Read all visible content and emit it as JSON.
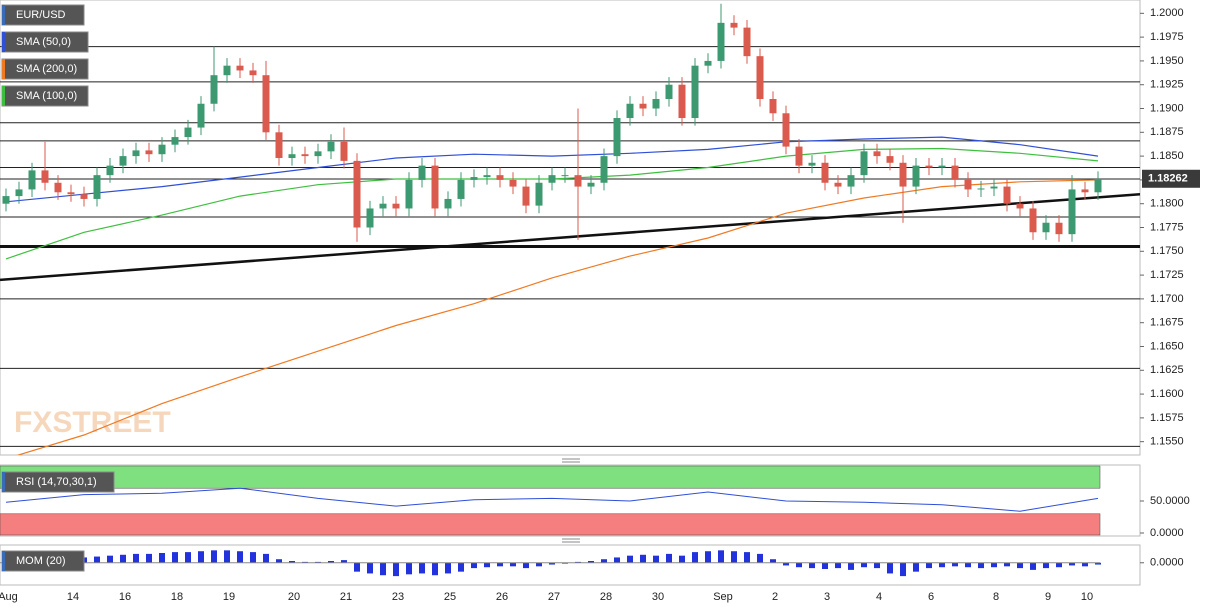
{
  "chart_data": [
    {
      "type": "candlestick",
      "title": "EUR/USD",
      "watermark": "FXSTREET",
      "categories": [
        "Aug",
        null,
        null,
        null,
        null,
        "14",
        null,
        null,
        null,
        "16",
        null,
        null,
        null,
        "18",
        null,
        null,
        null,
        "19",
        null,
        null,
        null,
        null,
        "20",
        null,
        null,
        null,
        "21",
        null,
        null,
        null,
        "23",
        null,
        null,
        null,
        "25",
        null,
        null,
        null,
        "26",
        null,
        null,
        null,
        "27",
        null,
        null,
        null,
        "28",
        null,
        null,
        null,
        "30",
        null,
        null,
        null,
        null,
        "Sep",
        null,
        null,
        null,
        "2",
        null,
        null,
        null,
        "3",
        null,
        null,
        null,
        "4",
        null,
        null,
        null,
        "6",
        null,
        null,
        null,
        null,
        "8",
        null,
        null,
        null,
        "9",
        null,
        null,
        "10",
        null
      ],
      "open": [
        1.18,
        1.1808,
        1.1815,
        1.1835,
        1.1822,
        1.1812,
        1.181,
        1.1805,
        1.183,
        1.184,
        1.185,
        1.1856,
        1.1852,
        1.1862,
        1.187,
        1.188,
        1.1905,
        1.1935,
        1.1945,
        1.194,
        1.1935,
        1.1875,
        1.1848,
        1.1852,
        1.185,
        1.1855,
        1.1865,
        1.1845,
        1.1775,
        1.1795,
        1.18,
        1.1795,
        1.1825,
        1.184,
        1.1795,
        1.1805,
        1.1825,
        1.1828,
        1.183,
        1.1825,
        1.1818,
        1.1798,
        1.1822,
        1.183,
        1.183,
        1.1818,
        1.1822,
        1.185,
        1.189,
        1.1905,
        1.19,
        1.191,
        1.1925,
        1.189,
        1.1945,
        1.195,
        1.199,
        1.1985,
        1.1955,
        1.191,
        1.1895,
        1.186,
        1.184,
        1.1843,
        1.1822,
        1.1818,
        1.183,
        1.1855,
        1.185,
        1.1843,
        1.1818,
        1.184,
        1.1838,
        1.184,
        1.1825,
        1.1815,
        1.1816,
        1.1818,
        1.18,
        1.1795,
        1.177,
        1.178,
        1.1768,
        1.1815,
        1.1812
      ],
      "high": [
        1.1816,
        1.1823,
        1.1843,
        1.1865,
        1.183,
        1.182,
        1.1818,
        1.1838,
        1.1848,
        1.1858,
        1.1864,
        1.1864,
        1.187,
        1.1878,
        1.1888,
        1.1913,
        1.1965,
        1.1953,
        1.1953,
        1.1948,
        1.195,
        1.1883,
        1.186,
        1.186,
        1.1863,
        1.1873,
        1.188,
        1.1853,
        1.1803,
        1.1808,
        1.1808,
        1.1833,
        1.1848,
        1.1848,
        1.1813,
        1.1833,
        1.1836,
        1.1838,
        1.1838,
        1.1833,
        1.1826,
        1.183,
        1.1838,
        1.1838,
        1.19,
        1.183,
        1.1858,
        1.1898,
        1.1913,
        1.1913,
        1.1918,
        1.1933,
        1.1933,
        1.1953,
        1.1958,
        1.201,
        1.1998,
        1.1993,
        1.1963,
        1.1918,
        1.1903,
        1.1868,
        1.1851,
        1.1851,
        1.183,
        1.1838,
        1.1863,
        1.1863,
        1.1858,
        1.1851,
        1.1848,
        1.1848,
        1.1848,
        1.1848,
        1.1833,
        1.1824,
        1.1826,
        1.1826,
        1.1808,
        1.1803,
        1.1788,
        1.1788,
        1.183,
        1.1823,
        1.1834
      ],
      "low": [
        1.1792,
        1.18,
        1.1807,
        1.1814,
        1.1804,
        1.1802,
        1.1797,
        1.1797,
        1.1822,
        1.1832,
        1.1842,
        1.1844,
        1.1844,
        1.1854,
        1.1862,
        1.1872,
        1.1897,
        1.1927,
        1.1932,
        1.1927,
        1.1867,
        1.184,
        1.184,
        1.1842,
        1.1842,
        1.1847,
        1.1837,
        1.176,
        1.1767,
        1.1787,
        1.1787,
        1.1787,
        1.1817,
        1.1787,
        1.1787,
        1.1797,
        1.1817,
        1.182,
        1.1817,
        1.181,
        1.179,
        1.179,
        1.1814,
        1.1822,
        1.1762,
        1.181,
        1.1814,
        1.1842,
        1.1882,
        1.1892,
        1.1892,
        1.1902,
        1.1882,
        1.1882,
        1.1937,
        1.1942,
        1.1977,
        1.1947,
        1.1902,
        1.1887,
        1.1852,
        1.1832,
        1.1832,
        1.1814,
        1.181,
        1.181,
        1.1822,
        1.1842,
        1.1835,
        1.178,
        1.181,
        1.183,
        1.183,
        1.1817,
        1.1807,
        1.1807,
        1.1808,
        1.1792,
        1.1787,
        1.1762,
        1.1762,
        1.176,
        1.176,
        1.1804,
        1.1804
      ],
      "close": [
        1.1808,
        1.1815,
        1.1835,
        1.1822,
        1.1812,
        1.181,
        1.1805,
        1.183,
        1.184,
        1.185,
        1.1856,
        1.1852,
        1.1862,
        1.187,
        1.188,
        1.1905,
        1.1935,
        1.1945,
        1.194,
        1.1935,
        1.1875,
        1.1848,
        1.1852,
        1.185,
        1.1855,
        1.1865,
        1.1845,
        1.1775,
        1.1795,
        1.18,
        1.1795,
        1.1825,
        1.184,
        1.1795,
        1.1805,
        1.1825,
        1.1828,
        1.183,
        1.1825,
        1.1818,
        1.1798,
        1.1822,
        1.183,
        1.183,
        1.1818,
        1.1822,
        1.185,
        1.189,
        1.1905,
        1.19,
        1.191,
        1.1925,
        1.189,
        1.1945,
        1.195,
        1.199,
        1.1985,
        1.1955,
        1.191,
        1.1895,
        1.186,
        1.184,
        1.1843,
        1.1822,
        1.1818,
        1.183,
        1.1855,
        1.185,
        1.1843,
        1.1818,
        1.184,
        1.1838,
        1.184,
        1.1825,
        1.1815,
        1.1816,
        1.1818,
        1.18,
        1.1795,
        1.177,
        1.178,
        1.1768,
        1.1815,
        1.1812,
        1.1826
      ],
      "up_color": "#3d9970",
      "down_color": "#db5a4e",
      "series": [
        {
          "name": "SMA (50,0)",
          "color": "#2f4fd8",
          "x": [
            0,
            6,
            12,
            18,
            24,
            30,
            36,
            42,
            48,
            54,
            60,
            66,
            72,
            78,
            84
          ],
          "values": [
            1.1802,
            1.181,
            1.1818,
            1.1828,
            1.1838,
            1.1848,
            1.1852,
            1.185,
            1.1853,
            1.1857,
            1.1865,
            1.1868,
            1.187,
            1.1862,
            1.185
          ]
        },
        {
          "name": "SMA (200,0)",
          "color": "#f07a22",
          "x": [
            0,
            6,
            12,
            18,
            24,
            30,
            36,
            42,
            48,
            54,
            60,
            66,
            72,
            78,
            84
          ],
          "values": [
            1.1532,
            1.1557,
            1.159,
            1.1618,
            1.1645,
            1.1672,
            1.1695,
            1.1722,
            1.1745,
            1.1764,
            1.179,
            1.1806,
            1.1818,
            1.1823,
            1.1825
          ]
        },
        {
          "name": "SMA (100,0)",
          "color": "#3fbf3f",
          "x": [
            0,
            6,
            12,
            18,
            24,
            30,
            36,
            42,
            48,
            54,
            60,
            66,
            72,
            78,
            84
          ],
          "values": [
            1.1742,
            1.177,
            1.1788,
            1.1808,
            1.182,
            1.1826,
            1.1826,
            1.1826,
            1.183,
            1.1838,
            1.185,
            1.1857,
            1.1858,
            1.1853,
            1.1845
          ]
        }
      ],
      "levels": [
        1.1965,
        1.1928,
        1.1885,
        1.1866,
        1.1838,
        1.1826,
        1.1786,
        1.17,
        1.1627,
        1.1545
      ],
      "support": 1.1755,
      "trendline": [
        1.172,
        1.181
      ],
      "last_price": 1.18262,
      "ylim": [
        1.1536,
        1.2014
      ],
      "yticks": [
        {
          "value": 1.2,
          "label": "1.2000"
        },
        {
          "value": 1.1975,
          "label": "1.1975"
        },
        {
          "value": 1.195,
          "label": "1.1950"
        },
        {
          "value": 1.1925,
          "label": "1.1925"
        },
        {
          "value": 1.19,
          "label": "1.1900"
        },
        {
          "value": 1.1875,
          "label": "1.1875"
        },
        {
          "value": 1.185,
          "label": "1.1850"
        },
        {
          "value": 1.1825,
          "label": "1.1825"
        },
        {
          "value": 1.18,
          "label": "1.1800"
        },
        {
          "value": 1.1775,
          "label": "1.1775"
        },
        {
          "value": 1.175,
          "label": "1.1750"
        },
        {
          "value": 1.1725,
          "label": "1.1725"
        },
        {
          "value": 1.17,
          "label": "1.1700"
        },
        {
          "value": 1.1675,
          "label": "1.1675"
        },
        {
          "value": 1.165,
          "label": "1.1650"
        },
        {
          "value": 1.1625,
          "label": "1.1625"
        },
        {
          "value": 1.16,
          "label": "1.1600"
        },
        {
          "value": 1.1575,
          "label": "1.1575"
        },
        {
          "value": 1.155,
          "label": "1.1550"
        }
      ]
    },
    {
      "type": "line",
      "title": "RSI (14,70,30,1)",
      "color": "#2f4fd8",
      "x": [
        0,
        6,
        12,
        18,
        24,
        30,
        36,
        42,
        48,
        54,
        60,
        66,
        72,
        78,
        84
      ],
      "values": [
        48,
        60,
        62,
        70,
        54,
        42,
        52,
        54,
        50,
        64,
        50,
        48,
        44,
        34,
        54
      ],
      "bands": [
        {
          "from": 70,
          "to": 100,
          "color": "#7ee07e"
        },
        {
          "from": 0,
          "to": 30,
          "color": "#f57f7f"
        }
      ],
      "ylim": [
        0,
        100
      ],
      "yticks": [
        {
          "value": 50,
          "label": "50.0000"
        },
        {
          "value": 0,
          "label": "0.0000"
        }
      ]
    },
    {
      "type": "bar",
      "title": "MOM (20)",
      "color": "#2233dd",
      "values": [
        0.004,
        0.005,
        0.006,
        0.005,
        0.004,
        0.005,
        0.006,
        0.007,
        0.008,
        0.009,
        0.01,
        0.01,
        0.011,
        0.012,
        0.012,
        0.013,
        0.014,
        0.014,
        0.013,
        0.012,
        0.01,
        0.004,
        0.002,
        0.001,
        0.001,
        0.002,
        0.003,
        -0.01,
        -0.012,
        -0.014,
        -0.015,
        -0.013,
        -0.012,
        -0.014,
        -0.012,
        -0.01,
        -0.006,
        -0.005,
        -0.004,
        -0.004,
        -0.006,
        -0.004,
        -0.002,
        -0.001,
        0.001,
        0.002,
        0.004,
        0.006,
        0.008,
        0.009,
        0.008,
        0.01,
        0.008,
        0.012,
        0.013,
        0.014,
        0.013,
        0.012,
        0.01,
        0.004,
        -0.003,
        -0.005,
        -0.006,
        -0.007,
        -0.006,
        -0.008,
        -0.005,
        -0.006,
        -0.012,
        -0.015,
        -0.01,
        -0.006,
        -0.005,
        -0.004,
        -0.005,
        -0.006,
        -0.005,
        -0.004,
        -0.006,
        -0.008,
        -0.006,
        -0.005,
        -0.003,
        -0.004,
        -0.002
      ],
      "ylim": [
        -0.025,
        0.02
      ],
      "yticks": [
        {
          "value": 0,
          "label": "0.0000"
        }
      ]
    }
  ]
}
